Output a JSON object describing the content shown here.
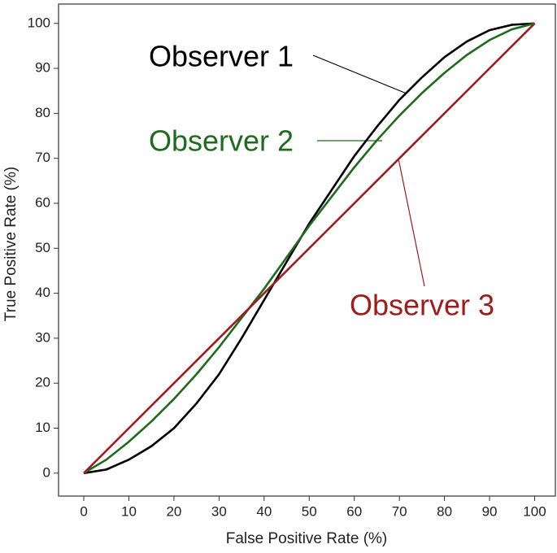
{
  "chart_data": {
    "type": "line",
    "xlabel": "False Positive Rate (%)",
    "ylabel": "True Positive Rate (%)",
    "xlim": [
      -5.6,
      104.6
    ],
    "ylim": [
      -5.1,
      104.3
    ],
    "xticks": [
      0,
      10,
      20,
      30,
      40,
      50,
      60,
      70,
      80,
      90,
      100
    ],
    "yticks": [
      0,
      10,
      20,
      30,
      40,
      50,
      60,
      70,
      80,
      90,
      100
    ],
    "series": [
      {
        "name": "Observer 1",
        "color": "#000000",
        "x": [
          0,
          5,
          10,
          15,
          20,
          25,
          30,
          35,
          40,
          45,
          50,
          55,
          60,
          65,
          70,
          75,
          80,
          85,
          90,
          95,
          100
        ],
        "values": [
          0,
          0.8,
          3,
          6,
          10,
          15.5,
          22,
          30,
          38.5,
          47,
          55.5,
          63,
          70.5,
          77,
          83,
          88,
          92.5,
          96,
          98.5,
          99.7,
          100
        ]
      },
      {
        "name": "Observer 2",
        "color": "#1e6b1e",
        "x": [
          0,
          5,
          10,
          15,
          20,
          25,
          30,
          35,
          40,
          45,
          50,
          55,
          60,
          65,
          70,
          75,
          80,
          85,
          90,
          95,
          100
        ],
        "values": [
          0,
          3,
          7,
          11.5,
          16.5,
          22,
          28,
          34.5,
          41,
          48,
          55,
          61.5,
          68,
          74,
          79.5,
          84.5,
          89,
          93,
          96.3,
          98.7,
          100
        ]
      },
      {
        "name": "Observer 3",
        "color": "#a01c1c",
        "x": [
          0,
          100
        ],
        "values": [
          0,
          100
        ]
      }
    ]
  }
}
